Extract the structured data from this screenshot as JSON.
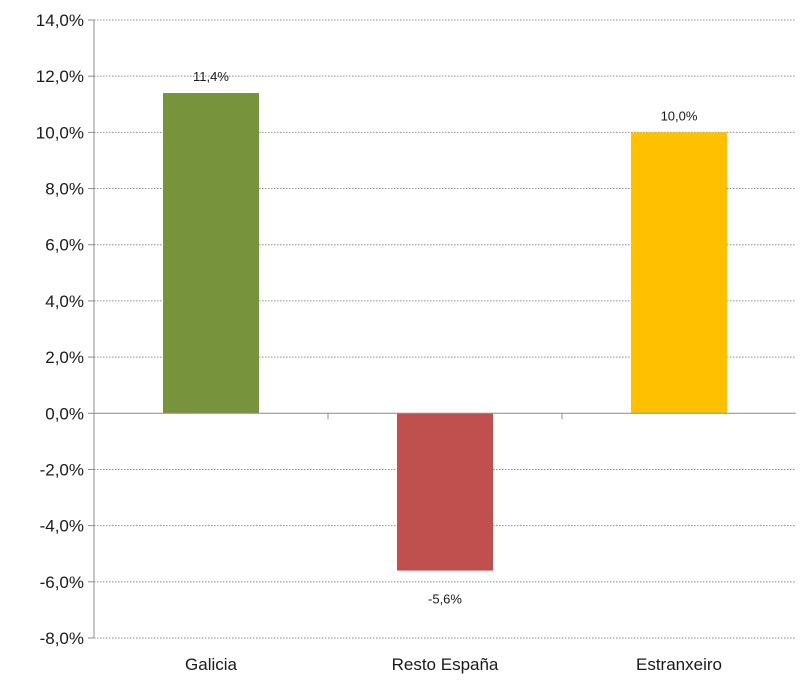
{
  "chart_data": {
    "type": "bar",
    "categories": [
      "Galicia",
      "Resto España",
      "Estranxeiro"
    ],
    "values": [
      11.4,
      -5.6,
      10.0
    ],
    "data_labels": [
      "11,4%",
      "-5,6%",
      "10,0%"
    ],
    "colors": [
      "#77933c",
      "#c0504d",
      "#ffc000"
    ],
    "ylim": [
      -8,
      14
    ],
    "y_ticks": [
      {
        "value": 14,
        "label": "14,0%"
      },
      {
        "value": 12,
        "label": "12,0%"
      },
      {
        "value": 10,
        "label": "10,0%"
      },
      {
        "value": 8,
        "label": "8,0%"
      },
      {
        "value": 6,
        "label": "6,0%"
      },
      {
        "value": 4,
        "label": "4,0%"
      },
      {
        "value": 2,
        "label": "2,0%"
      },
      {
        "value": 0,
        "label": "0,0%"
      },
      {
        "value": -2,
        "label": "-2,0%"
      },
      {
        "value": -4,
        "label": "-4,0%"
      },
      {
        "value": -6,
        "label": "-6,0%"
      },
      {
        "value": -8,
        "label": "-8,0%"
      }
    ],
    "grid": true,
    "grid_style": "dotted",
    "legend": "none",
    "title": "",
    "xlabel": "",
    "ylabel": ""
  }
}
